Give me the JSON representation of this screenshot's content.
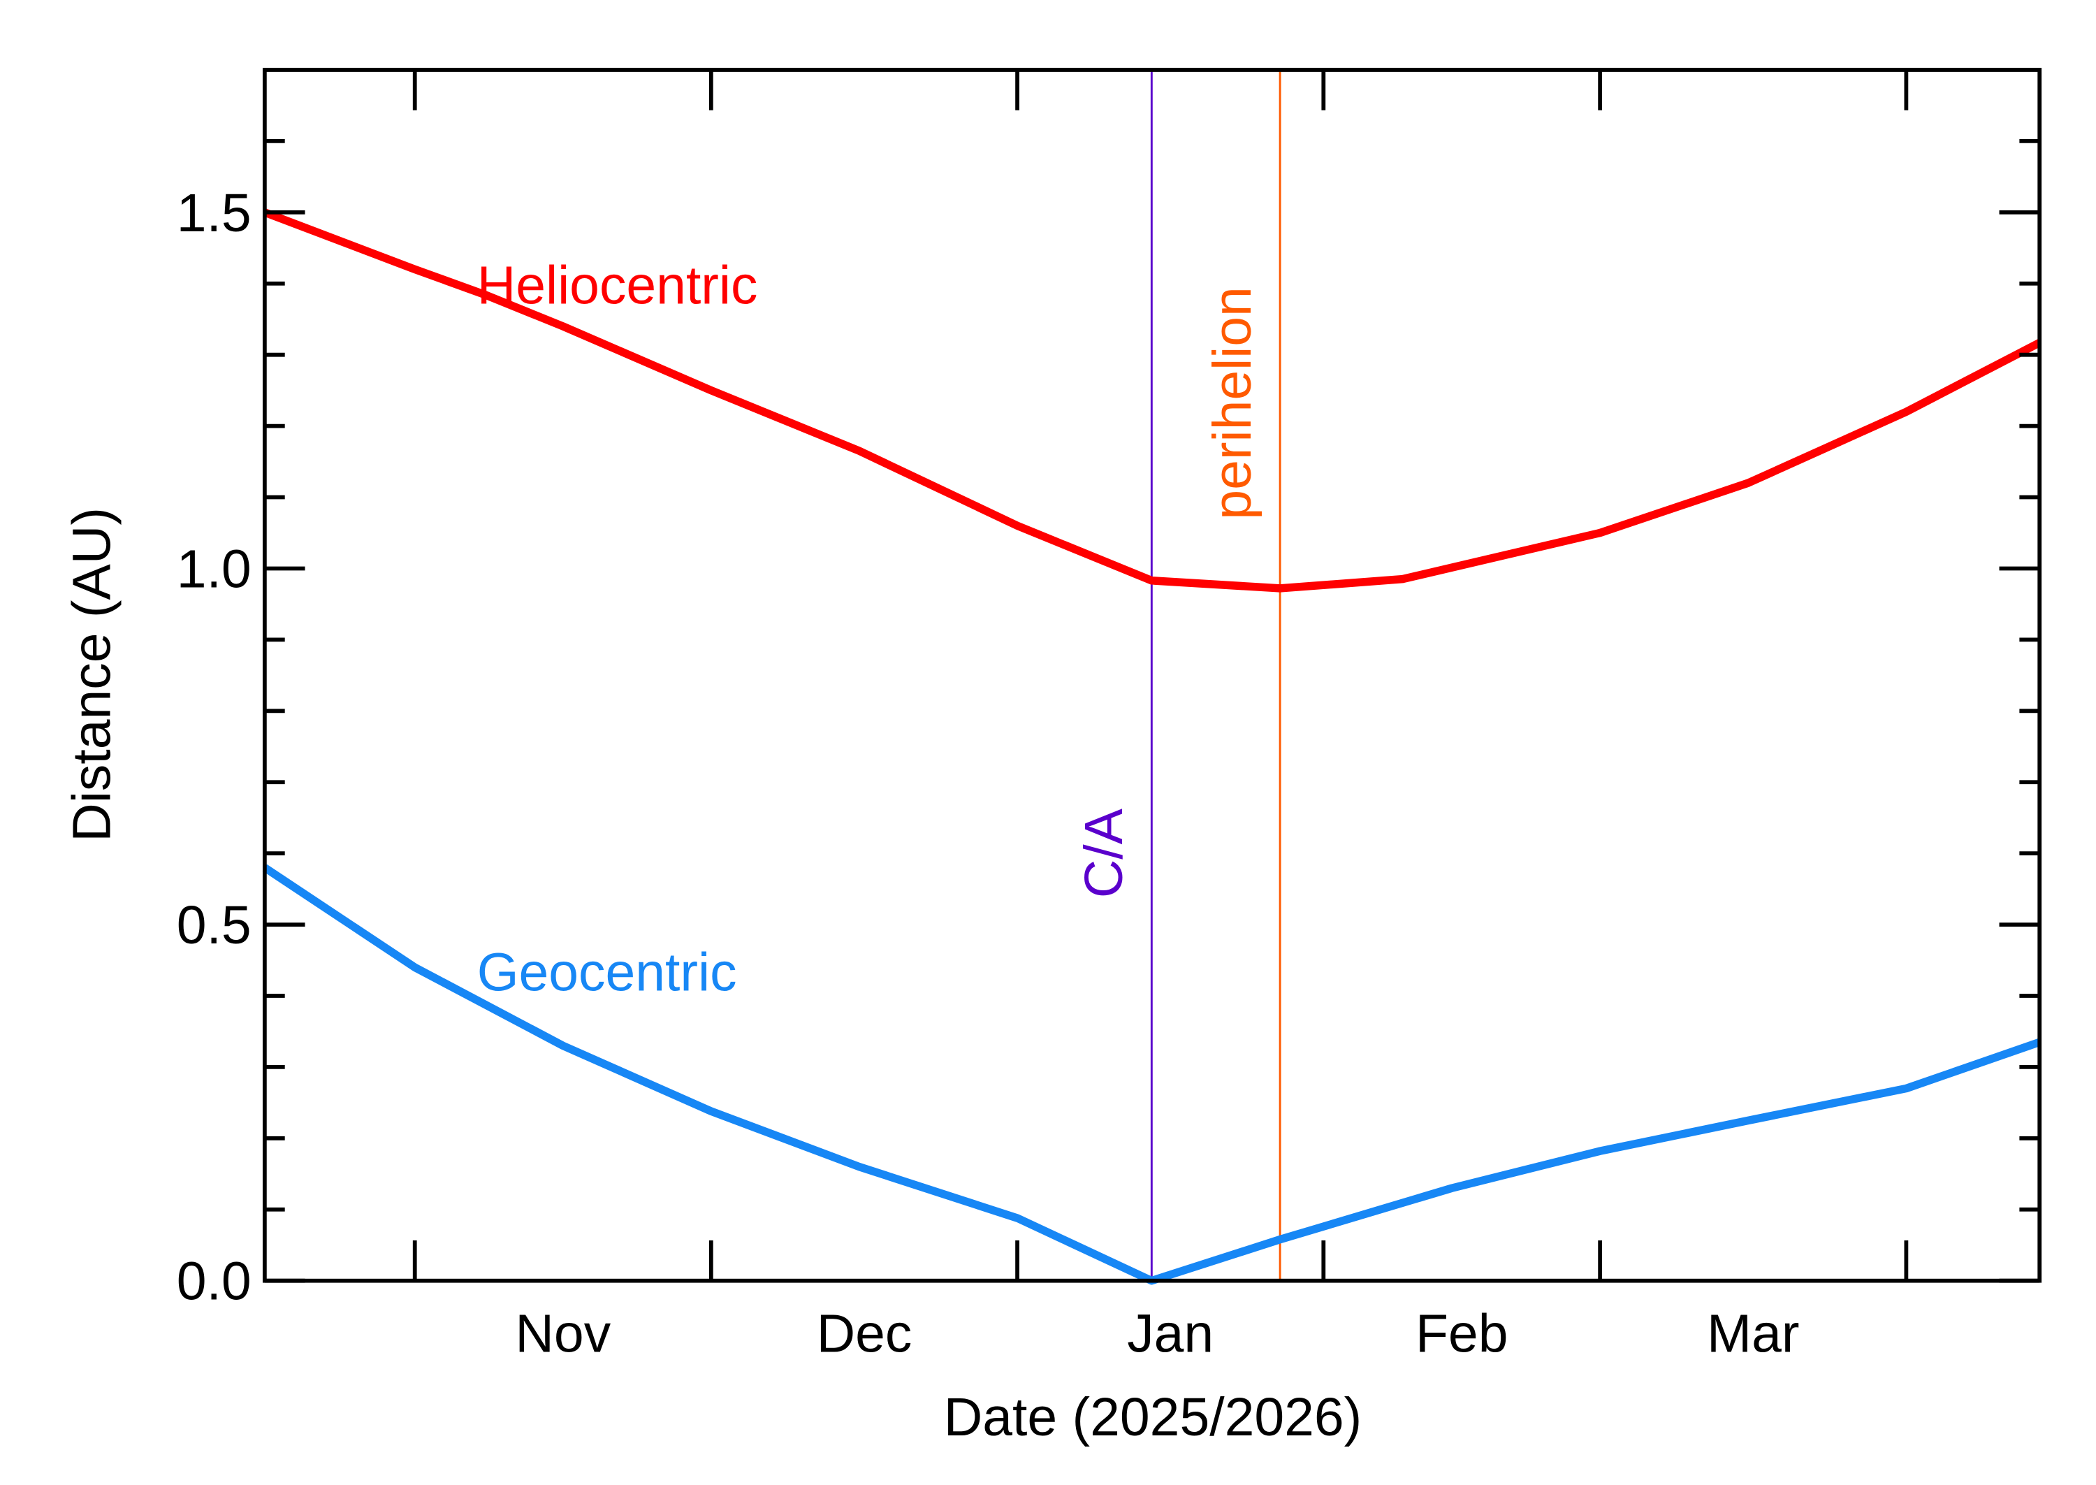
{
  "chart_data": {
    "type": "line",
    "xlabel": "Date (2025/2026)",
    "ylabel": "Distance (AU)",
    "xlim": [
      -15.2,
      164.5
    ],
    "xticks": [
      0,
      30,
      61,
      92,
      120,
      151
    ],
    "month_labels": [
      {
        "value": 15,
        "label": "Nov"
      },
      {
        "value": 45.5,
        "label": "Dec"
      },
      {
        "value": 76.5,
        "label": "Jan"
      },
      {
        "value": 106,
        "label": "Feb"
      },
      {
        "value": 135.5,
        "label": "Mar"
      }
    ],
    "ylim": [
      0,
      1.7
    ],
    "yticks": [
      {
        "value": 0,
        "label": "0.0"
      },
      0.5,
      {
        "value": 1,
        "label": "1.0"
      },
      1.5
    ],
    "yminor": [
      0.1,
      0.2,
      0.3,
      0.4,
      0.6,
      0.7,
      0.8,
      0.9,
      1.1,
      1.2,
      1.3,
      1.4,
      1.6
    ],
    "series": [
      {
        "name": "Heliocentric",
        "color": "#ff0000",
        "x": [
          -15.2,
          0,
          7,
          15,
          30,
          45,
          61,
          74.6,
          87.6,
          100,
          120,
          135,
          151,
          164.5
        ],
        "values": [
          1.5,
          1.42,
          1.385,
          1.34,
          1.25,
          1.165,
          1.06,
          0.983,
          0.972,
          0.985,
          1.05,
          1.12,
          1.22,
          1.317
        ]
      },
      {
        "name": "Geocentric",
        "color": "#1787f5",
        "x": [
          -15.2,
          0,
          15,
          30,
          45,
          61,
          74.6,
          87.6,
          105,
          120,
          135,
          151,
          164.5
        ],
        "values": [
          0.58,
          0.44,
          0.33,
          0.238,
          0.16,
          0.088,
          0.0,
          0.058,
          0.13,
          0.182,
          0.225,
          0.27,
          0.335
        ]
      }
    ],
    "events": [
      {
        "label": "C/A",
        "x": 74.6,
        "color": "#5a00cc"
      },
      {
        "label": "perihelion",
        "x": 87.6,
        "color": "#ff5a00"
      }
    ]
  }
}
